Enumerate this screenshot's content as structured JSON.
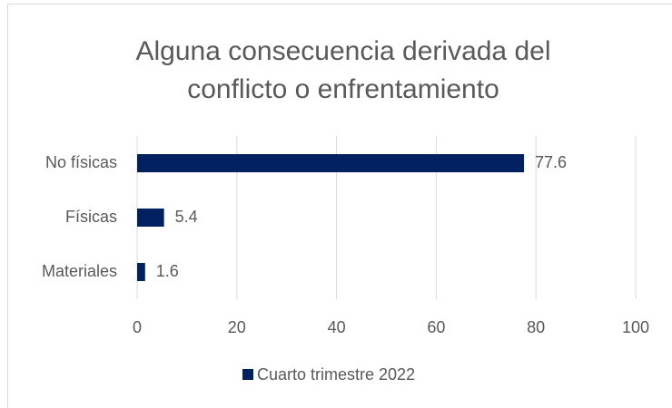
{
  "chart_data": {
    "type": "bar",
    "orientation": "horizontal",
    "title": [
      "Alguna consecuencia derivada del",
      "conflicto o enfrentamiento"
    ],
    "categories": [
      "No físicas",
      "Físicas",
      "Materiales"
    ],
    "series": [
      {
        "name": "Cuarto trimestre 2022",
        "color": "#002060",
        "values": [
          77.6,
          5.4,
          1.6
        ]
      }
    ],
    "xlim": [
      0,
      100
    ],
    "xticks": [
      0,
      20,
      40,
      60,
      80,
      100
    ],
    "grid": true,
    "legend": "bottom"
  }
}
